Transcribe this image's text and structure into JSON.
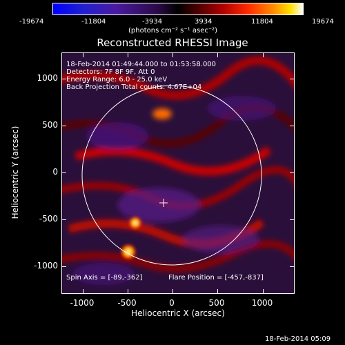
{
  "colorbar": {
    "ticks": [
      "-19674",
      "-11804",
      "-3934",
      "3934",
      "11804",
      "19674"
    ],
    "units": "(photons cm⁻² s⁻¹ asec⁻²)"
  },
  "title": "Reconstructed RHESSI Image",
  "info": {
    "line1": "18-Feb-2014 01:49:44.000 to 01:53:58.000",
    "line2": "Detectors: 7F 8F 9F, Att 0",
    "line3": "Energy Range: 6.0 - 25.0 keV",
    "line4": "Back Projection    Total counts: 4.67E+04"
  },
  "footer_left": "Spin Axis = [-89,-362]",
  "footer_right": "Flare Position = [-457,-837]",
  "axes": {
    "xlabel": "Heliocentric X (arcsec)",
    "ylabel": "Heliocentric Y (arcsec)",
    "xticks": [
      "-1000",
      "-500",
      "0",
      "500",
      "1000"
    ],
    "yticks": [
      "1000",
      "500",
      "0",
      "-500",
      "-1000"
    ]
  },
  "timestamp": "18-Feb-2014 05:09",
  "colors": {
    "background": "#000000",
    "limb": "#ffffff",
    "marker": "#ffffff"
  },
  "icons": {
    "spin_axis_marker": "plus-marker"
  }
}
